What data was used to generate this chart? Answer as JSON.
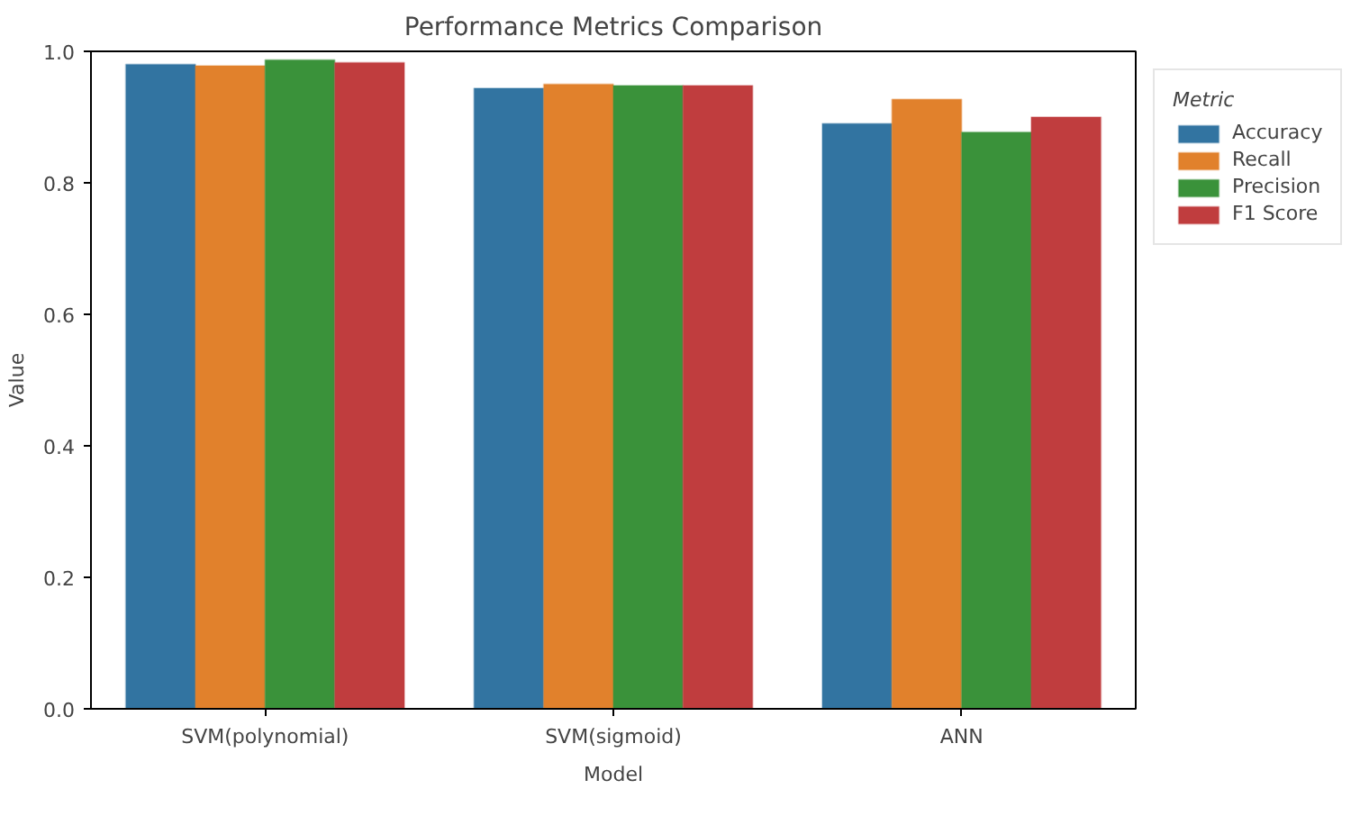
{
  "chart_data": {
    "type": "bar",
    "title": "Performance Metrics Comparison",
    "xlabel": "Model",
    "ylabel": "Value",
    "legend_title": "Metric",
    "categories": [
      "SVM(polynomial)",
      "SVM(sigmoid)",
      "ANN"
    ],
    "series": [
      {
        "name": "Accuracy",
        "color": "#3274a1",
        "values": [
          0.98,
          0.944,
          0.89
        ]
      },
      {
        "name": "Recall",
        "color": "#e1812c",
        "values": [
          0.978,
          0.95,
          0.927
        ]
      },
      {
        "name": "Precision",
        "color": "#3a923a",
        "values": [
          0.987,
          0.948,
          0.877
        ]
      },
      {
        "name": "F1 Score",
        "color": "#c03d3e",
        "values": [
          0.983,
          0.948,
          0.9
        ]
      }
    ],
    "ylim": [
      0,
      1
    ],
    "yticks": [
      {
        "value": 0,
        "label": "0.0"
      },
      {
        "value": 0.2,
        "label": "0.2"
      },
      {
        "value": 0.4,
        "label": "0.4"
      },
      {
        "value": 0.6,
        "label": "0.6"
      },
      {
        "value": 0.8,
        "label": "0.8"
      },
      {
        "value": 1,
        "label": "1.0"
      }
    ],
    "grid": false,
    "legend": "top right"
  }
}
